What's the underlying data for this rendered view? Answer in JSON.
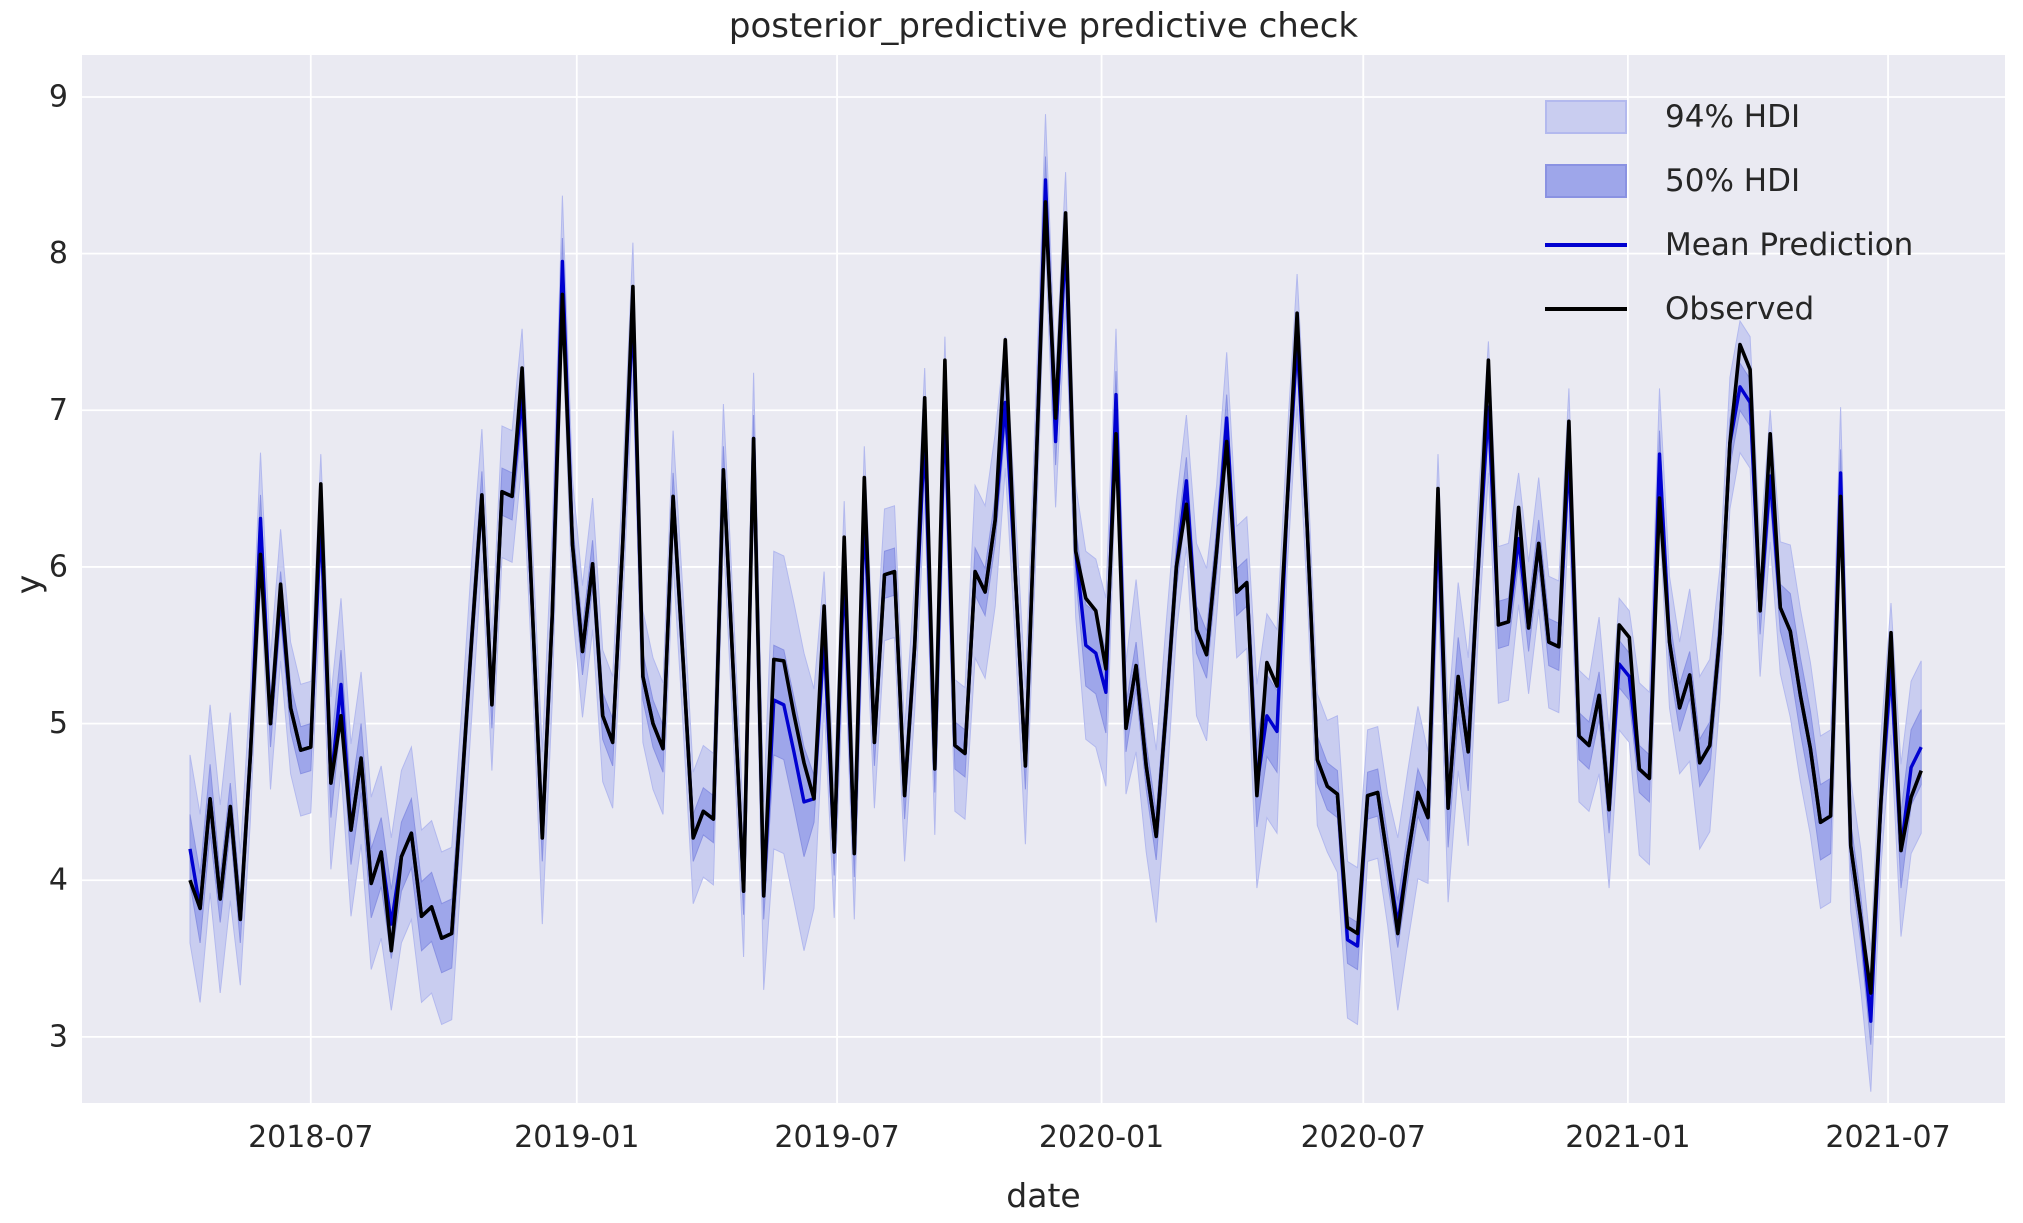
{
  "figure": {
    "title": "posterior_predictive predictive check"
  },
  "axes_labels": {
    "x": "date",
    "y": "y"
  },
  "legend": {
    "items": [
      {
        "label": "94% HDI",
        "type": "patch",
        "fill": "#c9cdf0",
        "edge": "#b3b9ee"
      },
      {
        "label": "50% HDI",
        "type": "patch",
        "fill": "#9ea6ea",
        "edge": "#8a92e2"
      },
      {
        "label": "Mean Prediction",
        "type": "line",
        "color": "#0101d0"
      },
      {
        "label": "Observed",
        "type": "line",
        "color": "#000000"
      }
    ]
  },
  "chart_data": {
    "type": "line",
    "title": "posterior_predictive predictive check",
    "xlabel": "date",
    "ylabel": "y",
    "colors": {
      "figure_bg": "#ffffff",
      "plot_bg": "#eaeaf2",
      "grid": "#ffffff",
      "hdi94_fill": "#c9cdf0",
      "hdi94_edge": "#b3b9ee",
      "hdi50_fill": "#9ea6ea",
      "hdi50_edge": "#8a92e2",
      "mean_line": "#0101d0",
      "observed_line": "#000000",
      "text": "#262626"
    },
    "x_axis": {
      "start_date": "2018-04-08",
      "step_days": 7,
      "tick_labels": [
        "2018-07",
        "2019-01",
        "2019-07",
        "2020-01",
        "2020-07",
        "2021-01",
        "2021-07"
      ],
      "tick_week_offsets": [
        12.0,
        38.43,
        64.29,
        90.57,
        116.57,
        142.86,
        168.71
      ],
      "xlim_weeks": [
        -10.73,
        180.33
      ]
    },
    "y_axis": {
      "ticks": [
        3,
        4,
        5,
        6,
        7,
        8,
        9
      ],
      "ylim": [
        2.578,
        9.268
      ]
    },
    "grid": true,
    "legend_position": "upper right",
    "series": [
      {
        "name": "Observed",
        "values": [
          4.0,
          3.82,
          4.52,
          3.88,
          4.47,
          3.75,
          4.8,
          6.08,
          5.0,
          5.89,
          5.1,
          4.83,
          4.85,
          6.53,
          4.62,
          5.05,
          4.32,
          4.78,
          3.98,
          4.18,
          3.55,
          4.15,
          4.3,
          3.77,
          3.83,
          3.63,
          3.66,
          4.58,
          5.55,
          6.46,
          5.12,
          6.48,
          6.45,
          7.27,
          5.75,
          4.27,
          5.7,
          7.74,
          6.14,
          5.46,
          6.02,
          5.05,
          4.88,
          6.16,
          7.79,
          5.3,
          5.0,
          4.84,
          6.45,
          5.39,
          4.27,
          4.44,
          4.39,
          6.62,
          5.3,
          3.93,
          6.82,
          3.9,
          5.41,
          5.4,
          5.06,
          4.75,
          4.52,
          5.75,
          4.18,
          6.19,
          4.17,
          6.57,
          4.88,
          5.95,
          5.97,
          4.54,
          5.5,
          7.08,
          4.71,
          7.32,
          4.86,
          4.81,
          5.97,
          5.84,
          6.3,
          7.45,
          5.95,
          4.73,
          6.5,
          8.33,
          6.95,
          8.26,
          6.1,
          5.8,
          5.72,
          5.35,
          6.85,
          4.97,
          5.37,
          4.73,
          4.28,
          5.1,
          6.0,
          6.4,
          5.6,
          5.44,
          6.1,
          6.8,
          5.84,
          5.9,
          4.54,
          5.39,
          5.24,
          6.4,
          7.62,
          6.25,
          4.77,
          4.6,
          4.55,
          3.7,
          3.66,
          4.54,
          4.56,
          4.13,
          3.66,
          4.15,
          4.56,
          4.4,
          6.5,
          4.46,
          5.3,
          4.82,
          6.0,
          7.32,
          5.63,
          5.65,
          6.38,
          5.61,
          6.15,
          5.52,
          5.49,
          6.93,
          4.92,
          4.86,
          5.18,
          4.45,
          5.63,
          5.55,
          4.71,
          4.65,
          6.44,
          5.52,
          5.1,
          5.31,
          4.75,
          4.86,
          5.57,
          6.79,
          7.42,
          7.26,
          5.72,
          6.85,
          5.74,
          5.59,
          5.18,
          4.84,
          4.37,
          4.41,
          6.45,
          4.22,
          3.75,
          3.28,
          4.5,
          5.58,
          4.19,
          4.53,
          4.7
        ]
      },
      {
        "name": "Mean Prediction",
        "values": [
          4.2,
          3.82,
          4.52,
          3.88,
          4.47,
          3.75,
          4.8,
          6.31,
          5.0,
          5.82,
          5.1,
          4.83,
          4.85,
          6.3,
          4.62,
          5.25,
          4.32,
          4.78,
          3.98,
          4.18,
          3.72,
          4.15,
          4.3,
          3.77,
          3.83,
          3.63,
          3.66,
          4.58,
          5.55,
          6.46,
          5.12,
          6.48,
          6.45,
          7.1,
          5.75,
          4.27,
          5.7,
          7.95,
          6.14,
          5.46,
          6.02,
          5.05,
          4.88,
          6.16,
          7.65,
          5.3,
          5.0,
          4.84,
          6.45,
          5.39,
          4.27,
          4.44,
          4.39,
          6.62,
          5.3,
          3.93,
          6.82,
          3.9,
          5.15,
          5.12,
          4.82,
          4.5,
          4.52,
          5.55,
          4.18,
          6.0,
          4.17,
          6.35,
          4.88,
          5.95,
          5.97,
          4.54,
          5.5,
          6.85,
          4.71,
          7.05,
          4.86,
          4.81,
          5.97,
          5.84,
          6.3,
          7.05,
          5.95,
          4.73,
          6.5,
          8.47,
          6.8,
          8.1,
          6.1,
          5.5,
          5.45,
          5.2,
          7.1,
          4.97,
          5.37,
          4.73,
          4.28,
          5.1,
          6.0,
          6.55,
          5.6,
          5.44,
          6.1,
          6.95,
          5.84,
          5.9,
          4.6,
          5.05,
          4.95,
          6.4,
          7.45,
          6.25,
          4.77,
          4.6,
          4.55,
          3.62,
          3.58,
          4.54,
          4.56,
          4.13,
          3.72,
          4.15,
          4.56,
          4.4,
          6.3,
          4.46,
          5.3,
          4.82,
          6.0,
          7.02,
          5.63,
          5.65,
          6.18,
          5.61,
          6.15,
          5.52,
          5.49,
          6.72,
          4.92,
          4.86,
          5.18,
          4.45,
          5.38,
          5.3,
          4.71,
          4.65,
          6.72,
          5.52,
          5.1,
          5.31,
          4.75,
          4.86,
          5.57,
          6.79,
          7.15,
          7.05,
          5.72,
          6.58,
          5.74,
          5.59,
          5.18,
          4.84,
          4.37,
          4.41,
          6.6,
          4.22,
          3.75,
          3.1,
          4.5,
          5.35,
          4.19,
          4.72,
          4.85
        ]
      }
    ],
    "bands": {
      "hdi94": {
        "around": "Mean Prediction",
        "halfwidth_default": 0.42,
        "halfwidth_overrides": {
          "0-4": 0.6,
          "14-26": 0.55,
          "27-28": 0.5,
          "35-36": 0.55,
          "57": 0.6,
          "58-61": 0.95,
          "62": 0.7,
          "78-80": 0.55,
          "83-84": 0.5,
          "89-91": 0.6,
          "94-97": 0.55,
          "100-101": 0.55,
          "106-108": 0.65,
          "114-116": 0.5,
          "120-122": 0.55,
          "125-127": 0.6,
          "130-131": 0.5,
          "140-141": 0.5,
          "144-145": 0.55,
          "149-151": 0.55,
          "159-163": 0.55,
          "166-167": 0.45,
          "170-172": 0.55
        }
      },
      "hdi50": {
        "around": "Mean Prediction",
        "halfwidth_default": 0.15,
        "halfwidth_overrides": {
          "0-2": 0.22,
          "14-26": 0.22,
          "58-61": 0.35,
          "89-91": 0.26,
          "106-108": 0.26,
          "125-127": 0.25,
          "159-163": 0.24,
          "170-172": 0.24
        }
      }
    }
  }
}
